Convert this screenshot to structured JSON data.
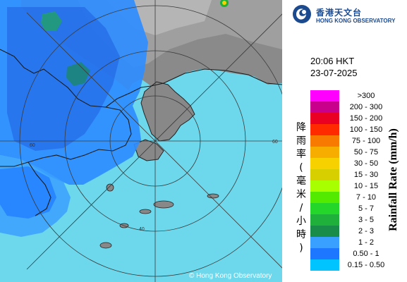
{
  "map": {
    "copyright": "© Hong Kong Observatory",
    "range_labels": [
      "60",
      "40",
      "60"
    ]
  },
  "header": {
    "logo_zh": "香港天文台",
    "logo_en": "HONG KONG OBSERVATORY"
  },
  "time": "20:06 HKT",
  "date": "23-07-2025",
  "legend": {
    "axis_zh": "降雨率(毫米/小時)",
    "axis_en": "Rainfall Rate (mm/h)",
    "items": [
      {
        "label": ">300",
        "color": "#ff00ff"
      },
      {
        "label": "200 - 300",
        "color": "#c8008c"
      },
      {
        "label": "150 - 200",
        "color": "#ea0023"
      },
      {
        "label": "100 - 150",
        "color": "#ff2a00"
      },
      {
        "label": "75 - 100",
        "color": "#f87a00"
      },
      {
        "label": "50 - 75",
        "color": "#f7ad00"
      },
      {
        "label": "30 - 50",
        "color": "#f7d200"
      },
      {
        "label": "15 - 30",
        "color": "#d8cf00"
      },
      {
        "label": "10 - 15",
        "color": "#a8ff00"
      },
      {
        "label": "7 - 10",
        "color": "#53ea00"
      },
      {
        "label": "5 - 7",
        "color": "#24d52a"
      },
      {
        "label": "3 - 5",
        "color": "#1fb03b"
      },
      {
        "label": "2 - 3",
        "color": "#198c4a"
      },
      {
        "label": "1 - 2",
        "color": "#3aa0ff"
      },
      {
        "label": "0.50 - 1",
        "color": "#1e78ff"
      },
      {
        "label": "0.15 - 0.50",
        "color": "#00c4ff"
      }
    ]
  }
}
